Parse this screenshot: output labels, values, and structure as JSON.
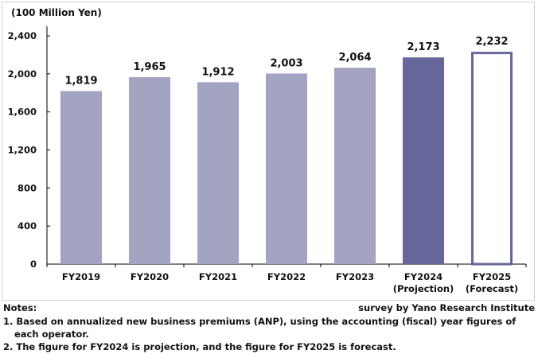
{
  "chart_data": {
    "type": "bar",
    "ylabel": "(100 Million Yen)",
    "ylim": [
      0,
      2400
    ],
    "yticks": [
      "0",
      "400",
      "800",
      "1,200",
      "1,600",
      "2,000",
      "2,400"
    ],
    "categories": [
      [
        "FY2019"
      ],
      [
        "FY2020"
      ],
      [
        "FY2021"
      ],
      [
        "FY2022"
      ],
      [
        "FY2023"
      ],
      [
        "FY2024",
        "(Projection)"
      ],
      [
        "FY2025",
        "(Forecast)"
      ]
    ],
    "values": [
      1819,
      1965,
      1912,
      2003,
      2064,
      2173,
      2232
    ],
    "data_labels": [
      "1,819",
      "1,965",
      "1,912",
      "2,003",
      "2,064",
      "2,173",
      "2,232"
    ],
    "bar_styles": [
      "actual",
      "actual",
      "actual",
      "actual",
      "actual",
      "projection",
      "forecast"
    ],
    "colors": {
      "actual": "#a3a3c2",
      "projection": "#66669a",
      "forecast_outline": "#66669a"
    },
    "grid": false
  },
  "notes": {
    "heading": "Notes:",
    "source": "survey by Yano Research Institute",
    "line1a": "1. Based on annualized new business premiums (ANP), using the accounting (fiscal) year figures of",
    "line1b": "each operator.",
    "line2": "2. The figure for FY2024 is projection, and the figure for FY2025 is forecast."
  }
}
